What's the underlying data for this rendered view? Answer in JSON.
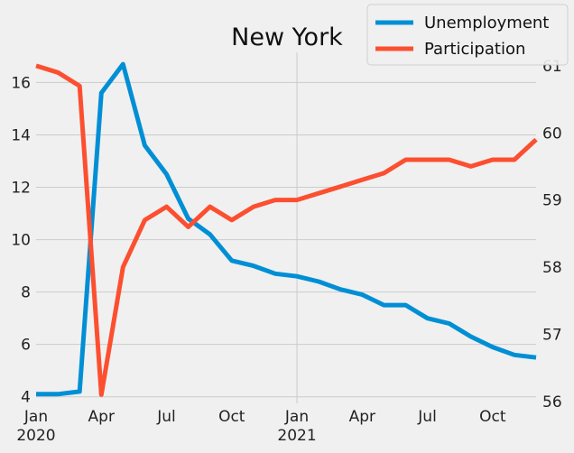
{
  "chart_data": {
    "type": "line",
    "title": "New York",
    "x": [
      "2020-01",
      "2020-02",
      "2020-03",
      "2020-04",
      "2020-05",
      "2020-06",
      "2020-07",
      "2020-08",
      "2020-09",
      "2020-10",
      "2020-11",
      "2020-12",
      "2021-01",
      "2021-02",
      "2021-03",
      "2021-04",
      "2021-05",
      "2021-06",
      "2021-07",
      "2021-08",
      "2021-09",
      "2021-10",
      "2021-11",
      "2021-12"
    ],
    "x_ticks": [
      {
        "date": "2020-01",
        "label": "Jan",
        "sublabel": "2020"
      },
      {
        "date": "2020-04",
        "label": "Apr",
        "sublabel": ""
      },
      {
        "date": "2020-07",
        "label": "Jul",
        "sublabel": ""
      },
      {
        "date": "2020-10",
        "label": "Oct",
        "sublabel": ""
      },
      {
        "date": "2021-01",
        "label": "Jan",
        "sublabel": "2021"
      },
      {
        "date": "2021-04",
        "label": "Apr",
        "sublabel": ""
      },
      {
        "date": "2021-07",
        "label": "Jul",
        "sublabel": ""
      },
      {
        "date": "2021-10",
        "label": "Oct",
        "sublabel": ""
      }
    ],
    "series": [
      {
        "name": "Unemployment",
        "axis": "left",
        "color": "#008fd5",
        "values": [
          4.1,
          4.1,
          4.2,
          15.6,
          16.7,
          13.6,
          12.5,
          10.8,
          10.2,
          9.2,
          9.0,
          8.7,
          8.6,
          8.4,
          8.1,
          7.9,
          7.5,
          7.5,
          7.0,
          6.8,
          6.3,
          5.9,
          5.6,
          5.5
        ]
      },
      {
        "name": "Participation",
        "axis": "right",
        "color": "#fc4f30",
        "values": [
          61.0,
          60.9,
          60.7,
          56.1,
          58.0,
          58.7,
          58.9,
          58.6,
          58.9,
          58.7,
          58.9,
          59.0,
          59.0,
          59.1,
          59.2,
          59.3,
          59.4,
          59.6,
          59.6,
          59.6,
          59.5,
          59.6,
          59.6,
          59.9
        ]
      }
    ],
    "y_left": {
      "ylim": [
        3.75,
        17.15
      ],
      "ticks": [
        4,
        6,
        8,
        10,
        12,
        14,
        16
      ]
    },
    "y_right": {
      "ylim": [
        55.97,
        61.2
      ],
      "ticks": [
        56,
        57,
        58,
        59,
        60,
        61
      ]
    },
    "grid": true,
    "vertical_marker": "2021-01",
    "legend_position": "top-right"
  }
}
